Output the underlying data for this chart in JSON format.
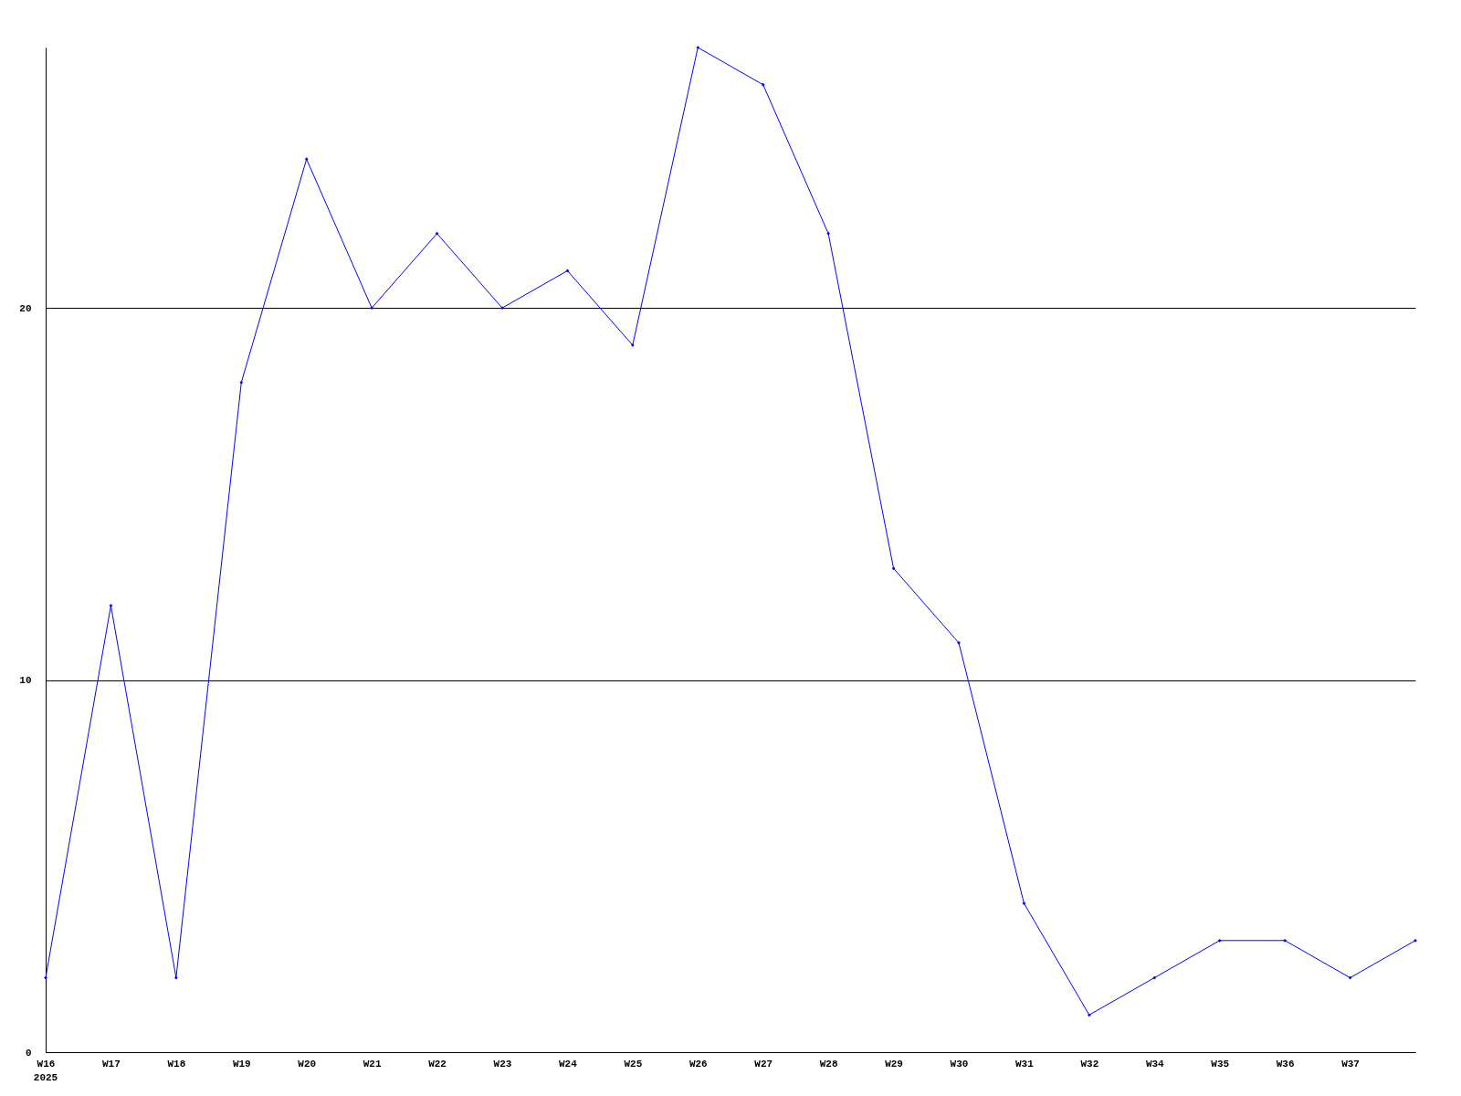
{
  "chart_data": {
    "type": "line",
    "categories": [
      "W16",
      "W17",
      "W18",
      "W19",
      "W20",
      "W21",
      "W22",
      "W23",
      "W24",
      "W25",
      "W26",
      "W27",
      "W28",
      "W29",
      "W30",
      "W31",
      "W32",
      "W34",
      "W35",
      "W36",
      "W37",
      null
    ],
    "series": [
      {
        "color": "#0000ff",
        "values": [
          2,
          12,
          2,
          18,
          24,
          20,
          22,
          20,
          21,
          19,
          27,
          26,
          22,
          13,
          11,
          4,
          1,
          2,
          3,
          3,
          2,
          3
        ]
      }
    ],
    "ylim": [
      0,
      27
    ],
    "yticks": [
      0,
      10,
      20
    ],
    "grid": "y",
    "marker": "diamond",
    "legend": false,
    "annotations": [
      "2025"
    ]
  }
}
